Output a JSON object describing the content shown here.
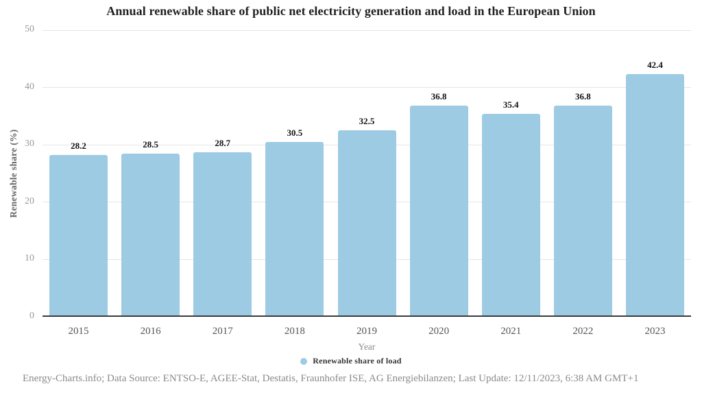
{
  "title": "Annual renewable share of public net electricity generation and load in the European Union",
  "chart_data": {
    "type": "bar",
    "categories": [
      "2015",
      "2016",
      "2017",
      "2018",
      "2019",
      "2020",
      "2021",
      "2022",
      "2023"
    ],
    "series": [
      {
        "name": "Renewable share of load",
        "values": [
          28.2,
          28.5,
          28.7,
          30.5,
          32.5,
          36.8,
          35.4,
          36.8,
          42.4
        ],
        "color": "#9dcbe3"
      }
    ],
    "value_labels": [
      "28.2",
      "28.5",
      "28.7",
      "30.5",
      "32.5",
      "36.8",
      "35.4",
      "36.8",
      "42.4"
    ],
    "title": "Annual renewable share of public net electricity generation and load in the European Union",
    "xlabel": "Year",
    "ylabel": "Renewable share (%)",
    "ylim": [
      0,
      50
    ],
    "yticks": [
      0,
      10,
      20,
      30,
      40,
      50
    ],
    "grid": true,
    "legend_position": "bottom"
  },
  "legend": {
    "items": [
      {
        "label": "Renewable share of load",
        "color": "#9dcbe3",
        "marker": "circle-icon"
      }
    ]
  },
  "footer": "Energy-Charts.info; Data Source: ENTSO-E, AGEE-Stat, Destatis, Fraunhofer ISE, AG Energiebilanzen; Last Update: 12/11/2023, 6:38 AM GMT+1",
  "colors": {
    "bar": "#9dcbe3",
    "gridline": "#e5e5e5",
    "axis_line": "#3a3a3a",
    "title_text": "#1f1f1f",
    "value_label_text": "#111111",
    "y_tick_text": "#999999",
    "x_tick_text": "#555555",
    "axis_title_text": "#8c8c8c",
    "footer_text": "#8a8a8a"
  }
}
